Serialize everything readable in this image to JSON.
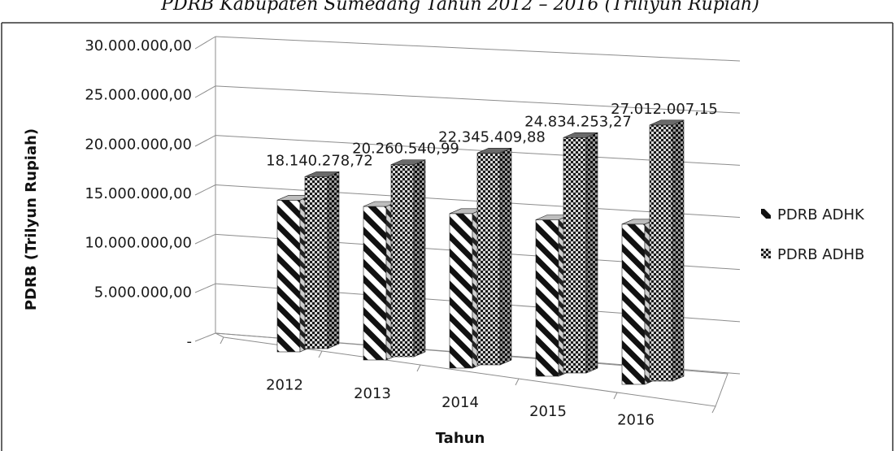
{
  "chart_data": {
    "type": "bar",
    "title": "PDRB Kabupaten Sumedang Tahun 2012 – 2016 (Triliyun Rupiah)",
    "xlabel": "Tahun",
    "ylabel": "PDRB (Trilyun Rupiah)",
    "categories": [
      "2012",
      "2013",
      "2014",
      "2015",
      "2016"
    ],
    "series": [
      {
        "name": "PDRB ADHK",
        "values": [
          16000000,
          16200000,
          16300000,
          16500000,
          16900000
        ],
        "pattern": "diagonal-stripes"
      },
      {
        "name": "PDRB ADHB",
        "values": [
          18140278.72,
          20260540.99,
          22345409.88,
          24834253.27,
          27012007.15
        ],
        "pattern": "checker",
        "labels": [
          "18.140.278,72",
          "20.260.540,99",
          "22.345.409,88",
          "24.834.253,27",
          "27.012.007,15"
        ]
      }
    ],
    "ylim": [
      0,
      30000000
    ],
    "ytick_labels": [
      "-",
      "5.000.000,00",
      "10.000.000,00",
      "15.000.000,00",
      "20.000.000,00",
      "25.000.000,00",
      "30.000.000,00"
    ],
    "grid": true,
    "legend_position": "right",
    "colors": {
      "stripe": "#111111",
      "checker_dark": "#1a1a1a",
      "checker_light": "#d8d8d8",
      "grid": "#8c8c8c"
    }
  }
}
